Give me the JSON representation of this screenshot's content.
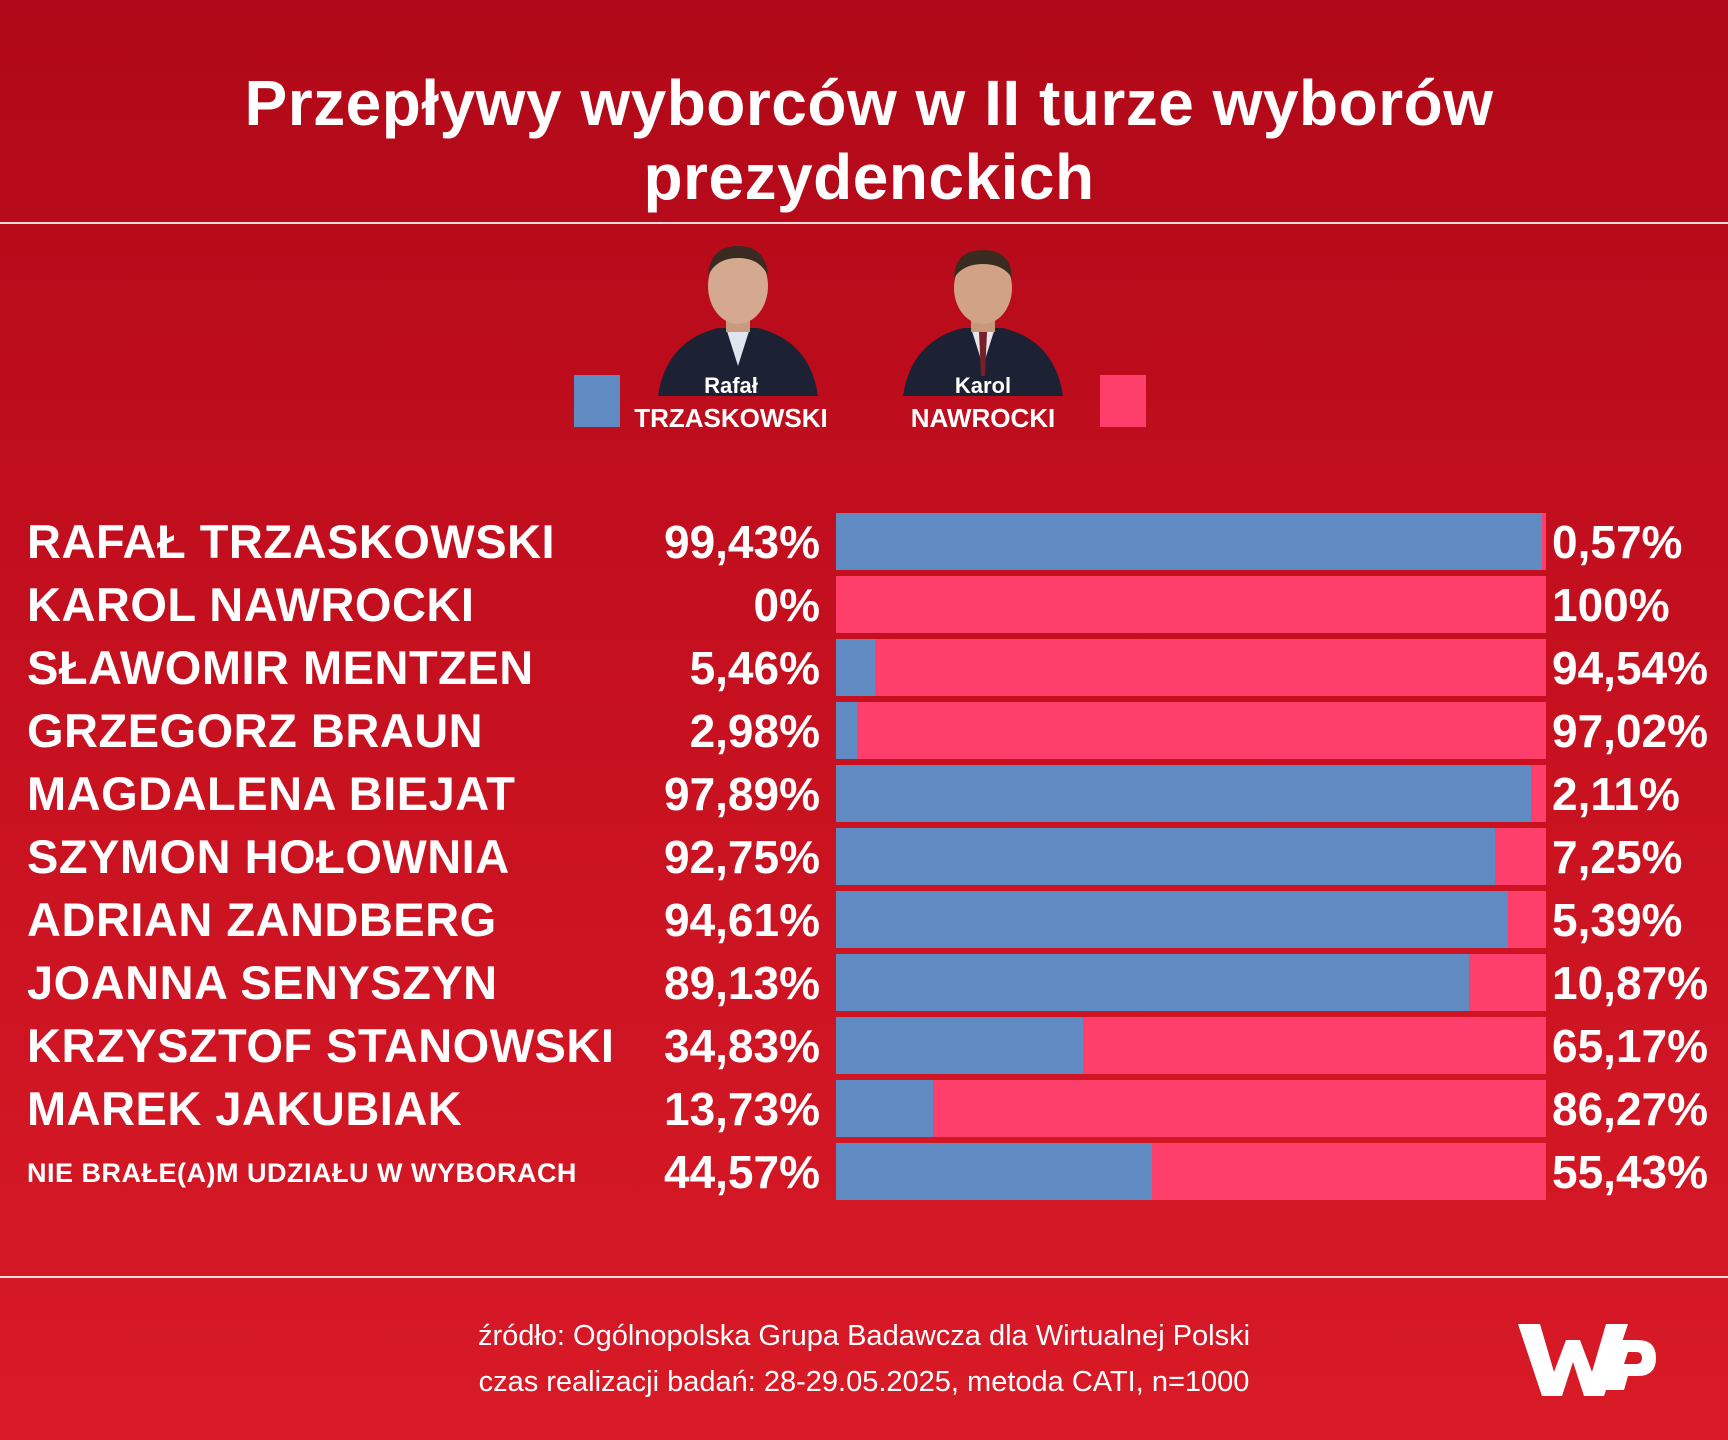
{
  "title": "Przepływy wyborców w II turze wyborów prezydenckich",
  "colors": {
    "trzaskowski": "#5f8bc2",
    "nawrocki": "#ff3f6b"
  },
  "legend": [
    {
      "first": "Rafał",
      "last": "TRZASKOWSKI"
    },
    {
      "first": "Karol",
      "last": "NAWROCKI"
    }
  ],
  "chart_data": {
    "type": "bar",
    "orientation": "horizontal",
    "stacked": true,
    "categories": [
      "RAFAŁ TRZASKOWSKI",
      "KAROL NAWROCKI",
      "SŁAWOMIR MENTZEN",
      "GRZEGORZ BRAUN",
      "MAGDALENA BIEJAT",
      "SZYMON HOŁOWNIA",
      "ADRIAN ZANDBERG",
      "JOANNA SENYSZYN",
      "KRZYSZTOF STANOWSKI",
      "MAREK JAKUBIAK",
      "NIE BRAŁE(A)M UDZIAŁU W WYBORACH"
    ],
    "series": [
      {
        "name": "TRZASKOWSKI",
        "values": [
          99.43,
          0,
          5.46,
          2.98,
          97.89,
          92.75,
          94.61,
          89.13,
          34.83,
          13.73,
          44.57
        ],
        "labels": [
          "99,43%",
          "0%",
          "5,46%",
          "2,98%",
          "97,89%",
          "92,75%",
          "94,61%",
          "89,13%",
          "34,83%",
          "13,73%",
          "44,57%"
        ]
      },
      {
        "name": "NAWROCKI",
        "values": [
          0.57,
          100,
          94.54,
          97.02,
          2.11,
          7.25,
          5.39,
          10.87,
          65.17,
          86.27,
          55.43
        ],
        "labels": [
          "0,57%",
          "100%",
          "94,54%",
          "97,02%",
          "2,11%",
          "7,25%",
          "5,39%",
          "10,87%",
          "65,17%",
          "86,27%",
          "55,43%"
        ]
      }
    ],
    "xlim": [
      0,
      100
    ]
  },
  "source": {
    "line1": "źródło: Ogólnopolska Grupa Badawcza dla Wirtualnej Polski",
    "line2": "czas realizacji badań: 28-29.05.2025, metoda CATI, n=1000"
  }
}
